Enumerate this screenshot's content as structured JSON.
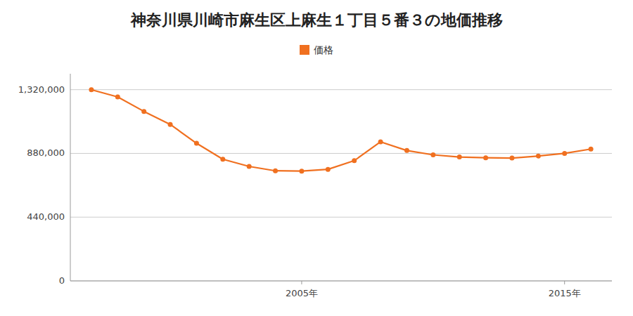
{
  "chart_data": {
    "type": "line",
    "title": "神奈川県川崎市麻生区上麻生１丁目５番３の地価推移",
    "x": [
      1997,
      1998,
      1999,
      2000,
      2001,
      2002,
      2003,
      2004,
      2005,
      2006,
      2007,
      2008,
      2009,
      2010,
      2011,
      2012,
      2013,
      2014,
      2015,
      2016
    ],
    "series": [
      {
        "name": "価格",
        "color": "#f07020",
        "marker": "circle",
        "values": [
          1320000,
          1270000,
          1170000,
          1080000,
          950000,
          840000,
          790000,
          760000,
          758000,
          770000,
          830000,
          960000,
          900000,
          870000,
          855000,
          850000,
          848000,
          862000,
          880000,
          910000
        ]
      }
    ],
    "xlim": [
      1996.2,
      2016.8
    ],
    "xticks": [
      {
        "value": 2005,
        "label": "2005年"
      },
      {
        "value": 2015,
        "label": "2015年"
      }
    ],
    "ylim": [
      0,
      1430000
    ],
    "yticks": [
      0,
      {
        "value": 440000,
        "label": "440,000"
      },
      {
        "value": 880000,
        "label": "880,000"
      },
      {
        "value": 1320000,
        "label": "1,320,000"
      }
    ],
    "grid": true,
    "legend": "top"
  }
}
